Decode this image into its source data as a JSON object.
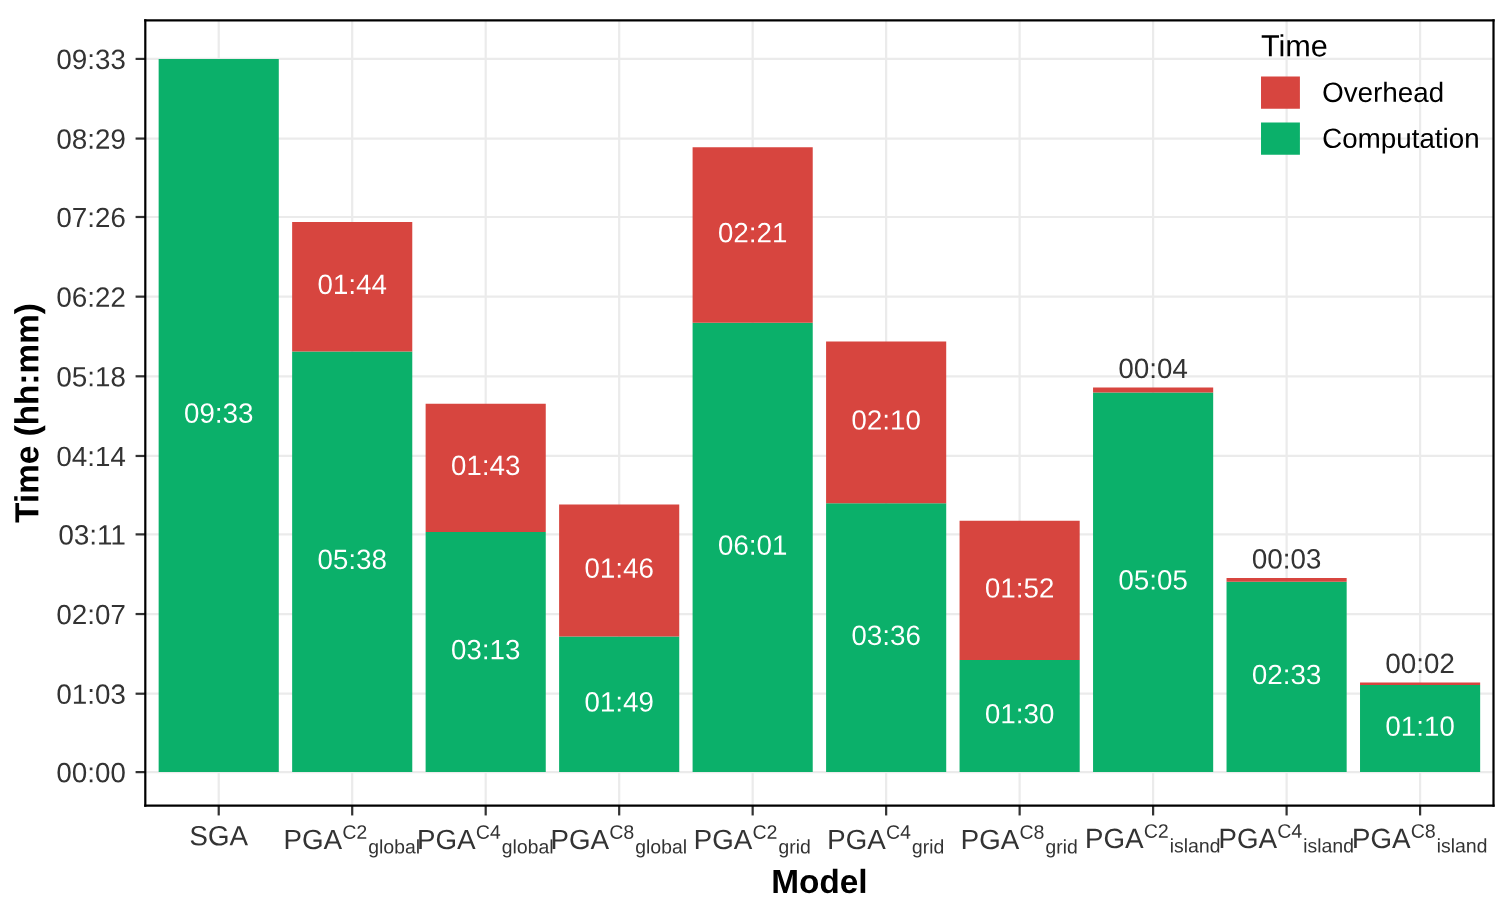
{
  "chart_data": {
    "type": "bar",
    "stacked": true,
    "xlabel": "Model",
    "ylabel": "Time (hh:mm)",
    "legend_title": "Time",
    "legend": "top right",
    "grid": true,
    "categories": [
      "SGA",
      "PGA$^{C2}$$_{global}$",
      "PGA$^{C4}$$_{global}$",
      "PGA$^{C8}$$_{global}$",
      "PGA$^{C2}$$_{grid}$",
      "PGA$^{C4}$$_{grid}$",
      "PGA$^{C8}$$_{grid}$",
      "PGA$^{C2}$$_{island}$",
      "PGA$^{C4}$$_{island}$",
      "PGA$^{C8}$$_{island}$"
    ],
    "series": [
      {
        "name": "Computation",
        "color": "#0bb06a",
        "values": [
          573,
          338,
          193,
          109,
          361,
          216,
          90,
          305,
          153,
          70
        ],
        "value_labels": [
          "09:33",
          "05:38",
          "03:13",
          "01:49",
          "06:01",
          "03:36",
          "01:30",
          "05:05",
          "02:33",
          "01:10"
        ]
      },
      {
        "name": "Overhead",
        "color": "#d7453f",
        "values": [
          null,
          104,
          103,
          106,
          141,
          130,
          112,
          4,
          3,
          2
        ],
        "value_labels": [
          null,
          "01:44",
          "01:43",
          "01:46",
          "02:21",
          "02:10",
          "01:52",
          "00:04",
          "00:03",
          "00:02"
        ]
      }
    ],
    "ylim": [
      -27,
      604
    ],
    "yticks": [
      {
        "value": 0,
        "label": "00:00"
      },
      {
        "value": 63,
        "label": "01:03"
      },
      {
        "value": 127,
        "label": "02:07"
      },
      {
        "value": 191,
        "label": "03:11"
      },
      {
        "value": 254,
        "label": "04:14"
      },
      {
        "value": 318,
        "label": "05:18"
      },
      {
        "value": 382,
        "label": "06:22"
      },
      {
        "value": 446,
        "label": "07:26"
      },
      {
        "value": 509,
        "label": "08:29"
      },
      {
        "value": 573,
        "label": "09:33"
      }
    ]
  }
}
